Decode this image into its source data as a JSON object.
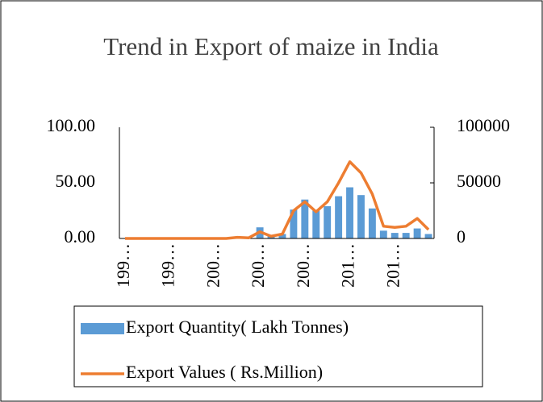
{
  "chart_data": {
    "type": "bar-line",
    "title": "Trend in Export of maize in India",
    "categories": [
      "199…",
      null,
      null,
      null,
      "199…",
      null,
      null,
      null,
      "200…",
      null,
      null,
      null,
      "200…",
      null,
      null,
      null,
      "200…",
      null,
      null,
      null,
      "201…",
      null,
      null,
      null,
      "201…",
      null,
      null,
      null
    ],
    "series": [
      {
        "name": "Export Quantity( Lakh Tonnes)",
        "type": "bar",
        "color": "#5b9bd5",
        "values": [
          0,
          0,
          0,
          0,
          0,
          0,
          0,
          0,
          0,
          0,
          0.5,
          0.3,
          10,
          3,
          4,
          26,
          35,
          25,
          29,
          38,
          46,
          39,
          27,
          7,
          5,
          5,
          9,
          4
        ]
      },
      {
        "name": "Export Values ( Rs.Million)",
        "type": "line",
        "axis": "y2",
        "color": "#ed7d31",
        "values": [
          0,
          0,
          0,
          0,
          0,
          0,
          0,
          0,
          0,
          0,
          1000,
          500,
          6000,
          2000,
          4000,
          25000,
          33000,
          24000,
          33000,
          50000,
          69000,
          59000,
          40000,
          11000,
          10000,
          11000,
          18000,
          8000
        ]
      }
    ],
    "ylim": [
      0,
      100
    ],
    "yticks": [
      {
        "value": 0,
        "label": "0.00"
      },
      {
        "value": 50,
        "label": "50.00"
      },
      {
        "value": 100,
        "label": "100.00"
      }
    ],
    "y2lim": [
      0,
      100000
    ],
    "y2ticks": [
      0,
      50000,
      100000
    ]
  }
}
